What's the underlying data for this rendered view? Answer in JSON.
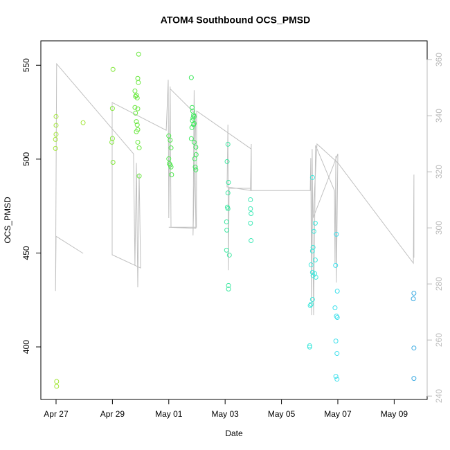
{
  "chart_data": {
    "type": "scatter",
    "title": "ATOM4 Southbound OCS_PMSD",
    "x_label": "Date",
    "y_label": "OCS_PMSD",
    "xlim": [
      26.46,
      40.17
    ],
    "xticks": [
      {
        "value": 27,
        "label": "Apr 27"
      },
      {
        "value": 29,
        "label": "Apr 29"
      },
      {
        "value": 31,
        "label": "May 01"
      },
      {
        "value": 33,
        "label": "May 03"
      },
      {
        "value": 35,
        "label": "May 05"
      },
      {
        "value": 37,
        "label": "May 07"
      },
      {
        "value": 39,
        "label": "May 09"
      }
    ],
    "ylim": [
      372,
      563
    ],
    "yticks": [
      400,
      450,
      500,
      550
    ],
    "y2lim": [
      238.8,
      366.7
    ],
    "y2ticks": [
      240,
      260,
      280,
      300,
      320,
      340,
      360
    ],
    "y2_color": "#bbbbbb",
    "series": [
      {
        "color": "#c0c0c0",
        "axis": "y2",
        "type": "line",
        "x": [
          27.96,
          27.0,
          26.98,
          27.02,
          29.75,
          29.8,
          29.85,
          29.9,
          29.95,
          30.0,
          28.99,
          28.99,
          30.91,
          30.98,
          31.0,
          31.05,
          31.08,
          31.05,
          31.96,
          31.86,
          31.9,
          31.96,
          31.0,
          31.98,
          31.99,
          33.93,
          33.93,
          33.07,
          33.1,
          33.12,
          33.14,
          33.9,
          33.93,
          33.9,
          36.02,
          36.04,
          36.07,
          36.09,
          36.14,
          36.21,
          36.88,
          36.9,
          36.93,
          36.95,
          37.0,
          36.12,
          36.26,
          37.0,
          39.68,
          39.7,
          39.7
        ],
        "values": [
          290.9,
          297.0,
          277.5,
          358.5,
          326.4,
          286.7,
          323.2,
          278.8,
          319.5,
          285.7,
          290.4,
          344.7,
          334.8,
          352.8,
          303.5,
          350.4,
          300.2,
          349.6,
          340.5,
          297.3,
          349.1,
          299.8,
          300.2,
          300.2,
          341.7,
          328.1,
          313.3,
          314.6,
          336.8,
          284.9,
          314.1,
          314.1,
          329.9,
          313.3,
          313.3,
          324.9,
          268.9,
          328.1,
          268.9,
          329.4,
          313.3,
          287.4,
          325.7,
          280.5,
          326.4,
          303.5,
          329.9,
          323.2,
          287.4,
          319.0,
          289.4
        ]
      },
      {
        "color": "#a3e63a",
        "x": [
          27.0,
          27.0,
          27.0,
          26.98,
          26.98,
          27.02,
          27.02,
          27.96
        ],
        "values": [
          522.7,
          518,
          513.2,
          510.5,
          505.7,
          381.6,
          379,
          519.4
        ]
      },
      {
        "color": "#84e83c",
        "x": [
          29.02,
          29.0,
          29.0,
          28.98,
          29.02
        ],
        "values": [
          547.8,
          527,
          511,
          509,
          498.3
        ]
      },
      {
        "color": "#6be840",
        "x": [
          29.93,
          29.9,
          29.92,
          29.8,
          29.85,
          29.82,
          29.88,
          29.8,
          29.82,
          29.9,
          29.85,
          29.88,
          29.9,
          29.85,
          29.9,
          29.95,
          29.95
        ],
        "values": [
          555.9,
          543,
          540.8,
          536.3,
          534,
          533.4,
          532.6,
          527.5,
          524.5,
          526.8,
          520,
          518.3,
          515.7,
          514.6,
          509,
          506,
          491
        ]
      },
      {
        "color": "#4ee84c",
        "x": [
          31.0,
          31.05,
          31.08,
          31.0,
          31.02,
          31.05,
          31.08,
          31.1
        ],
        "values": [
          512.4,
          510.1,
          506,
          500.2,
          497.6,
          496.9,
          495.8,
          491.7
        ]
      },
      {
        "color": "#3de85c",
        "x": [
          31.8,
          31.83,
          31.85,
          31.88,
          31.9,
          31.86,
          31.84,
          31.9,
          31.88,
          31.82,
          31.8,
          31.9,
          31.96,
          31.97,
          31.92,
          31.94,
          31.96
        ],
        "values": [
          543.4,
          527.5,
          525.6,
          523.4,
          522.7,
          521.9,
          520.5,
          519,
          518.3,
          516.8,
          510.9,
          509,
          506.4,
          502.4,
          500.2,
          495.8,
          494.3
        ]
      },
      {
        "color": "#3ee8a2",
        "x": [
          33.1,
          33.07,
          33.12,
          33.1,
          33.08,
          33.1,
          33.05,
          33.06,
          33.05,
          33.15,
          33.12,
          33.12
        ],
        "values": [
          507.9,
          498.7,
          487.6,
          482,
          474.4,
          473.6,
          466.6,
          462.2,
          451.5,
          448.9,
          432.7,
          430.8
        ]
      },
      {
        "color": "#3ee8b6",
        "x": [
          33.9,
          33.9,
          33.92,
          33.9,
          33.92
        ],
        "values": [
          478.4,
          473.6,
          471,
          465.9,
          456.6
        ]
      },
      {
        "color": "#3ee8dc",
        "x": [
          36.1,
          36.2,
          36.15,
          36.12,
          36.1,
          36.2,
          36.05,
          36.1,
          36.18,
          36.12,
          36.22,
          36.1,
          36.05,
          36.02,
          36.0,
          36.0
        ],
        "values": [
          490.2,
          465.9,
          461.5,
          453,
          451.1,
          446.3,
          443.7,
          439.7,
          439,
          438,
          437.1,
          425.3,
          422.7,
          422,
          400.6,
          399.9
        ]
      },
      {
        "color": "#3ee0ec",
        "x": [
          36.95,
          36.92,
          36.98,
          36.9,
          36.95,
          36.98,
          36.93,
          36.97,
          36.93,
          36.97
        ],
        "values": [
          460,
          443.4,
          429.7,
          420.8,
          416.4,
          415.7,
          403.1,
          396.5,
          384.3,
          382.8
        ]
      },
      {
        "color": "#3aaae2",
        "x": [
          39.7,
          39.68,
          39.7,
          39.7
        ],
        "values": [
          428.6,
          425.6,
          399.4,
          383.2
        ]
      }
    ]
  }
}
